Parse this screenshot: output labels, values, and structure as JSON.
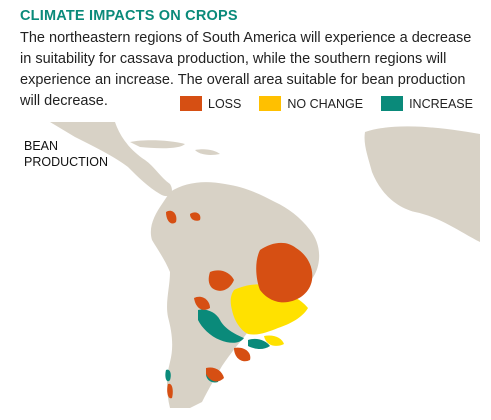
{
  "header": {
    "title": "CLIMATE IMPACTS ON CROPS",
    "description": "The northeastern regions of South America will experience a decrease in suitability for cassava production, while the southern regions will experience an increase. The overall area suitable for bean production will decrease."
  },
  "legend": [
    {
      "label": "LOSS",
      "color": "#d64f13"
    },
    {
      "label": "NO CHANGE",
      "color": "#f6a800"
    },
    {
      "label": "INCREASE",
      "color": "#0a8a7a"
    }
  ],
  "map": {
    "label_line1": "BEAN",
    "label_line2": "PRODUCTION",
    "ocean_color": "#ffffff",
    "land_color": "#d8d2c6"
  }
}
